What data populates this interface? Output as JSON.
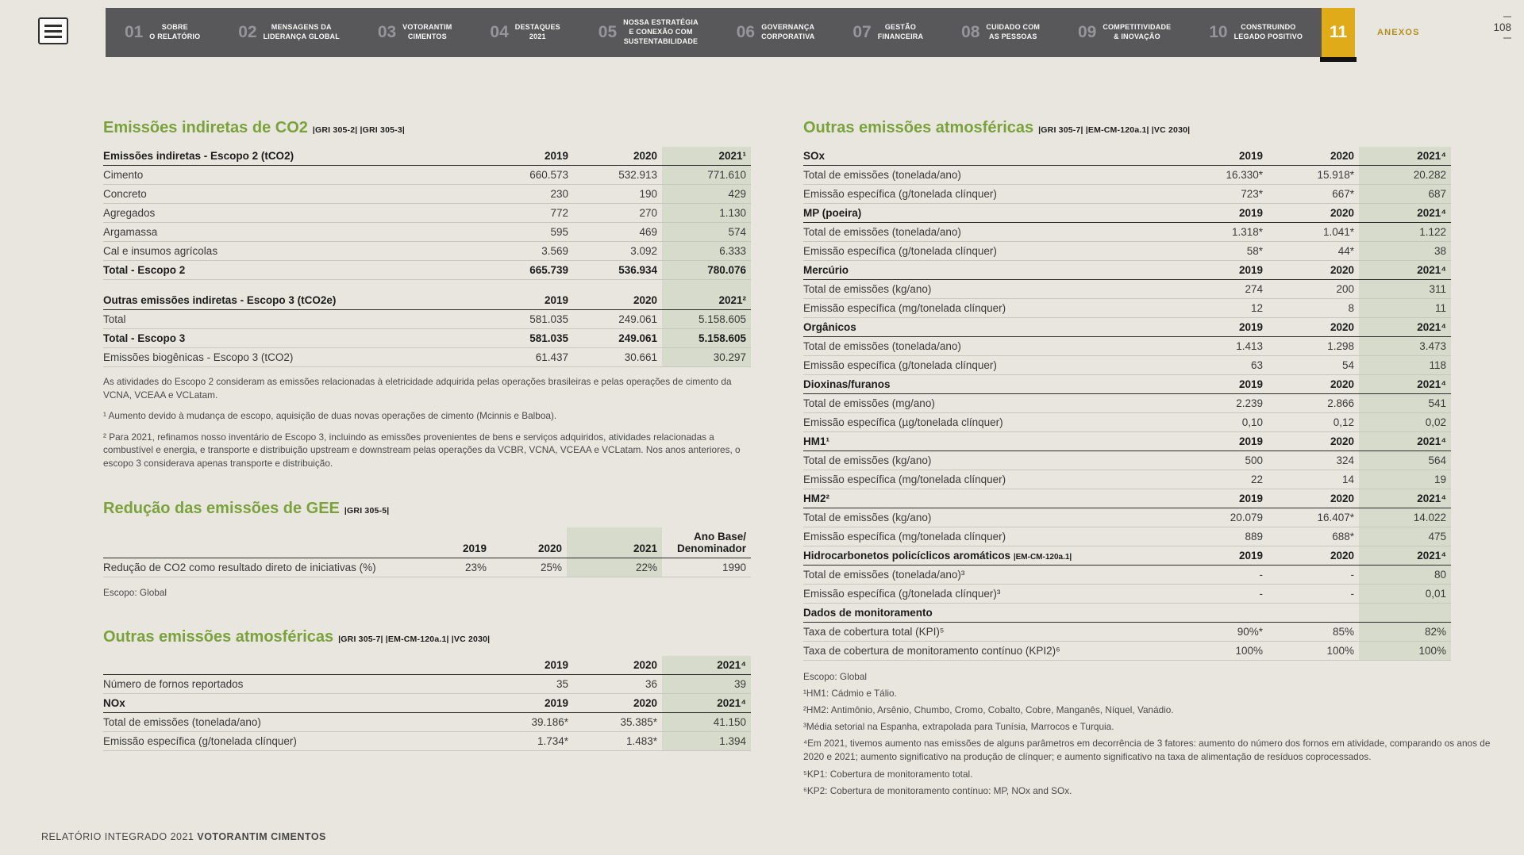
{
  "nav": {
    "items": [
      {
        "num": "01",
        "lines": [
          "SOBRE",
          "O RELATÓRIO"
        ]
      },
      {
        "num": "02",
        "lines": [
          "MENSAGENS DA",
          "LIDERANÇA GLOBAL"
        ]
      },
      {
        "num": "03",
        "lines": [
          "VOTORANTIM",
          "CIMENTOS"
        ]
      },
      {
        "num": "04",
        "lines": [
          "DESTAQUES",
          "2021"
        ]
      },
      {
        "num": "05",
        "lines": [
          "NOSSA ESTRATÉGIA",
          "E CONEXÃO COM",
          "SUSTENTABILIDADE"
        ]
      },
      {
        "num": "06",
        "lines": [
          "GOVERNANÇA",
          "CORPORATIVA"
        ]
      },
      {
        "num": "07",
        "lines": [
          "GESTÃO",
          "FINANCEIRA"
        ]
      },
      {
        "num": "08",
        "lines": [
          "CUIDADO COM",
          "AS PESSOAS"
        ]
      },
      {
        "num": "09",
        "lines": [
          "COMPETITIVIDADE",
          "& INOVAÇÃO"
        ]
      },
      {
        "num": "10",
        "lines": [
          "CONSTRUINDO",
          "LEGADO POSITIVO"
        ]
      },
      {
        "num": "11",
        "lines": [],
        "active": true
      }
    ],
    "anexos_label": "ANEXOS",
    "page_number": "108"
  },
  "footer": {
    "regular": "RELATÓRIO INTEGRADO 2021 ",
    "bold": "VOTORANTIM CIMENTOS"
  },
  "left": {
    "s1_title": "Emissões indiretas de CO2",
    "s1_tags": "|GRI 305-2| |GRI 305-3|",
    "s1_note": "As atividades do Escopo 2 consideram as emissões relacionadas à eletricidade adquirida pelas operações brasileiras e pelas operações de cimento da VCNA, VCEAA e VCLatam.",
    "s1_fn1": "¹ Aumento devido à mudança de escopo, aquisição de duas novas operações de cimento (Mcinnis e Balboa).",
    "s1_fn2": "² Para 2021, refinamos nosso inventário de Escopo 3, incluindo as emissões provenientes de bens e serviços adquiridos, atividades relacionadas a combustível e energia, e transporte e distribuição upstream e downstream pelas operações da VCBR, VCNA, VCEAA e VCLatam. Nos anos anteriores, o escopo 3 considerava apenas transporte e distribuição.",
    "s2_title": "Redução das emissões de GEE",
    "s2_tags": "|GRI 305-5|",
    "s2_scope": "Escopo: Global",
    "s3_title": "Outras emissões atmosféricas",
    "s3_tags": "|GRI 305-7| |EM-CM-120a.1| |VC 2030|"
  },
  "right": {
    "title": "Outras emissões atmosféricas",
    "tags": "|GRI 305-7| |EM-CM-120a.1| |VC 2030|",
    "footnotes": [
      "Escopo: Global",
      "¹HM1: Cádmio e Tálio.",
      "²HM2: Antimônio, Arsênio, Chumbo, Cromo, Cobalto, Cobre, Manganês, Níquel, Vanádio.",
      "³Média setorial na Espanha, extrapolada para Tunísia, Marrocos e Turquia.",
      "⁴Em 2021, tivemos aumento nas emissões de alguns parâmetros em decorrência de 3 fatores: aumento do número dos fornos em atividade, comparando os anos de 2020 e 2021; aumento significativo na produção de clínquer; e aumento significativo na taxa de alimentação de resíduos coprocessados.",
      "⁵KP1: Cobertura de monitoramento total.",
      "⁶KP2: Cobertura de monitoramento contínuo: MP, NOx and SOx."
    ]
  },
  "tables": {
    "escopo": {
      "cols": [
        "auto",
        112,
        112,
        112
      ],
      "hl": 3,
      "sections": [
        {
          "header": [
            "Emissões indiretas - Escopo 2 (tCO2)",
            "2019",
            "2020",
            "2021¹"
          ],
          "rows": [
            {
              "cells": [
                "Cimento",
                "660.573",
                "532.913",
                "771.610"
              ]
            },
            {
              "cells": [
                "Concreto",
                "230",
                "190",
                "429"
              ]
            },
            {
              "cells": [
                "Agregados",
                "772",
                "270",
                "1.130"
              ]
            },
            {
              "cells": [
                "Argamassa",
                "595",
                "469",
                "574"
              ]
            },
            {
              "cells": [
                "Cal e insumos agrícolas",
                "3.569",
                "3.092",
                "6.333"
              ]
            },
            {
              "cells": [
                "Total - Escopo 2",
                "665.739",
                "536.934",
                "780.076"
              ],
              "bold": true
            }
          ]
        },
        {
          "gap": true,
          "header": [
            "Outras emissões indiretas - Escopo 3 (tCO2e)",
            "2019",
            "2020",
            "2021²"
          ],
          "rows": [
            {
              "cells": [
                "Total",
                "581.035",
                "249.061",
                "5.158.605"
              ]
            },
            {
              "cells": [
                "Total - Escopo 3",
                "581.035",
                "249.061",
                "5.158.605"
              ],
              "bold": true
            },
            {
              "cells": [
                "Emissões biogênicas - Escopo 3 (tCO2)",
                "61.437",
                "30.661",
                "30.297"
              ]
            }
          ]
        }
      ]
    },
    "gee": {
      "cols": [
        "auto",
        95,
        95,
        120,
        112
      ],
      "hl": 3,
      "sections": [
        {
          "header": [
            "",
            "2019",
            "2020",
            "2021",
            "Ano Base/\nDenominador"
          ],
          "rows": [
            {
              "cells": [
                "Redução de CO2 como resultado direto de iniciativas (%)",
                "23%",
                "25%",
                "22%",
                "1990"
              ]
            }
          ]
        }
      ]
    },
    "outras_left": {
      "cols": [
        "auto",
        112,
        112,
        112
      ],
      "hl": 3,
      "sections": [
        {
          "header": [
            "",
            "2019",
            "2020",
            "2021⁴"
          ],
          "rows": [
            {
              "cells": [
                "Número de fornos reportados",
                "35",
                "36",
                "39"
              ]
            }
          ]
        },
        {
          "header": [
            "NOx",
            "2019",
            "2020",
            "2021⁴"
          ],
          "rows": [
            {
              "cells": [
                "Total de emissões (tonelada/ano)",
                "39.186*",
                "35.385*",
                "41.150"
              ]
            },
            {
              "cells": [
                "Emissão específica (g/tonelada clínquer)",
                "1.734*",
                "1.483*",
                "1.394"
              ]
            }
          ]
        }
      ]
    },
    "outras_right": {
      "cols": [
        "auto",
        115,
        115,
        116
      ],
      "hl": 3,
      "sections": [
        {
          "header": [
            "SOx",
            "2019",
            "2020",
            "2021⁴"
          ],
          "rows": [
            {
              "cells": [
                "Total de emissões (tonelada/ano)",
                "16.330*",
                "15.918*",
                "20.282"
              ]
            },
            {
              "cells": [
                "Emissão específica (g/tonelada clínquer)",
                "723*",
                "667*",
                "687"
              ]
            }
          ]
        },
        {
          "header": [
            "MP (poeira)",
            "2019",
            "2020",
            "2021⁴"
          ],
          "rows": [
            {
              "cells": [
                "Total de emissões (tonelada/ano)",
                "1.318*",
                "1.041*",
                "1.122"
              ]
            },
            {
              "cells": [
                "Emissão específica (g/tonelada clínquer)",
                "58*",
                "44*",
                "38"
              ]
            }
          ]
        },
        {
          "header": [
            "Mercúrio",
            "2019",
            "2020",
            "2021⁴"
          ],
          "rows": [
            {
              "cells": [
                "Total de emissões (kg/ano)",
                "274",
                "200",
                "311"
              ]
            },
            {
              "cells": [
                "Emissão específica (mg/tonelada clínquer)",
                "12",
                "8",
                "11"
              ]
            }
          ]
        },
        {
          "header": [
            "Orgânicos",
            "2019",
            "2020",
            "2021⁴"
          ],
          "rows": [
            {
              "cells": [
                "Total de emissões (tonelada/ano)",
                "1.413",
                "1.298",
                "3.473"
              ]
            },
            {
              "cells": [
                "Emissão específica (g/tonelada clínquer)",
                "63",
                "54",
                "118"
              ]
            }
          ]
        },
        {
          "header": [
            "Dioxinas/furanos",
            "2019",
            "2020",
            "2021⁴"
          ],
          "rows": [
            {
              "cells": [
                "Total de emissões (mg/ano)",
                "2.239",
                "2.866",
                "541"
              ]
            },
            {
              "cells": [
                "Emissão específica (µg/tonelada clínquer)",
                "0,10",
                "0,12",
                "0,02"
              ]
            }
          ]
        },
        {
          "header": [
            "HM1¹",
            "2019",
            "2020",
            "2021⁴"
          ],
          "rows": [
            {
              "cells": [
                "Total de emissões (kg/ano)",
                "500",
                "324",
                "564"
              ]
            },
            {
              "cells": [
                "Emissão específica (mg/tonelada clínquer)",
                "22",
                "14",
                "19"
              ]
            }
          ]
        },
        {
          "header": [
            "HM2²",
            "2019",
            "2020",
            "2021⁴"
          ],
          "rows": [
            {
              "cells": [
                "Total de emissões (kg/ano)",
                "20.079",
                "16.407*",
                "14.022"
              ]
            },
            {
              "cells": [
                "Emissão específica (mg/tonelada clínquer)",
                "889",
                "688*",
                "475"
              ]
            }
          ]
        },
        {
          "header": [
            "Hidrocarbonetos policíclicos aromáticos",
            "2019",
            "2020",
            "2021⁴"
          ],
          "tag": "|EM-CM-120a.1|",
          "rows": [
            {
              "cells": [
                "Total de emissões (tonelada/ano)³",
                "-",
                "-",
                "80"
              ]
            },
            {
              "cells": [
                "Emissão específica (g/tonelada clínquer)³",
                "-",
                "-",
                "0,01"
              ]
            }
          ]
        },
        {
          "header": [
            "Dados de monitoramento",
            "",
            "",
            ""
          ],
          "rows": [
            {
              "cells": [
                "Taxa de cobertura total (KPI)⁵",
                "90%*",
                "85%",
                "82%"
              ]
            },
            {
              "cells": [
                "Taxa de cobertura de monitoramento contínuo (KPI2)⁶",
                "100%",
                "100%",
                "100%"
              ]
            }
          ]
        }
      ]
    }
  }
}
